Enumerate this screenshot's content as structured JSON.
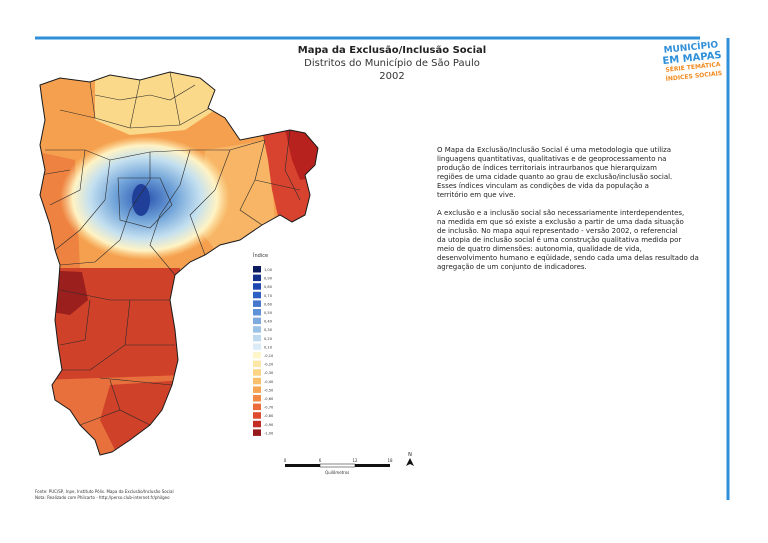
{
  "header": {
    "title": "Mapa da Exclusão/Inclusão Social",
    "subtitle": "Distritos do Município de São Paulo",
    "year": "2002"
  },
  "logo": {
    "line1": "MUNICÍPIO",
    "line2": "EM MAPAS",
    "series": "SÉRIE TEMÁTICA",
    "theme": "ÍNDICES SOCIAIS"
  },
  "description": {
    "paragraph1": [
      "O Mapa da Exclusão/Inclusão Social é uma metodologia que utiliza",
      "linguagens quantitativas, qualitativas e de geoprocessamento na",
      "produção de índices territoriais intraurbanos que hierarquizam",
      "regiões de uma cidade quanto ao grau de exclusão/inclusão social.",
      "Esses índices vinculam as condições de vida da população a",
      " território em que vive."
    ],
    "paragraph2": [
      "A exclusão e a inclusão social são necessariamente interdependentes,",
      "na medida em que só existe a exclusão a partir de uma dada situação",
      "de inclusão. No mapa aqui representado - versão 2002, o referencial",
      "da utopia de inclusão social é uma construção qualitativa medida por",
      "meio de quatro dimensões: autonomia, qualidade de vida,",
      "desenvolvimento humano e eqüidade, sendo cada uma delas resultado da",
      "agregação de um conjunto de indicadores."
    ]
  },
  "legend": {
    "title": "Índice",
    "items": [
      {
        "label": "1,00",
        "color": "#0b1a5e"
      },
      {
        "label": "0,90",
        "color": "#14308a"
      },
      {
        "label": "0,80",
        "color": "#1f47b0"
      },
      {
        "label": "0,70",
        "color": "#2f5fc4"
      },
      {
        "label": "0,60",
        "color": "#4577cc"
      },
      {
        "label": "0,50",
        "color": "#5f92d6"
      },
      {
        "label": "0,40",
        "color": "#7eaade"
      },
      {
        "label": "0,30",
        "color": "#9cc3e6"
      },
      {
        "label": "0,20",
        "color": "#bddaee"
      },
      {
        "label": "0,10",
        "color": "#dcecf6"
      },
      {
        "label": "-0,10",
        "color": "#fff6cc"
      },
      {
        "label": "-0,20",
        "color": "#fde7a6"
      },
      {
        "label": "-0,30",
        "color": "#fbd486"
      },
      {
        "label": "-0,40",
        "color": "#f9bf6c"
      },
      {
        "label": "-0,50",
        "color": "#f6a656"
      },
      {
        "label": "-0,60",
        "color": "#f28a45"
      },
      {
        "label": "-0,70",
        "color": "#eb6c3a"
      },
      {
        "label": "-0,80",
        "color": "#dd4a2e"
      },
      {
        "label": "-0,90",
        "color": "#c22c24"
      },
      {
        "label": "-1,00",
        "color": "#961a1c"
      }
    ]
  },
  "scale": {
    "ticks": [
      "0",
      "6",
      "12",
      "18"
    ],
    "unit": "Quilômetros",
    "north": "N"
  },
  "footer": {
    "source": "Fonte: PUC/SP, Inpe, Instituto Pólis. Mapa da Exclusão/Inclusão Social",
    "note": "Nota: Realizado com Philcarto - http://perso.club-internet.fr/philgeo"
  }
}
